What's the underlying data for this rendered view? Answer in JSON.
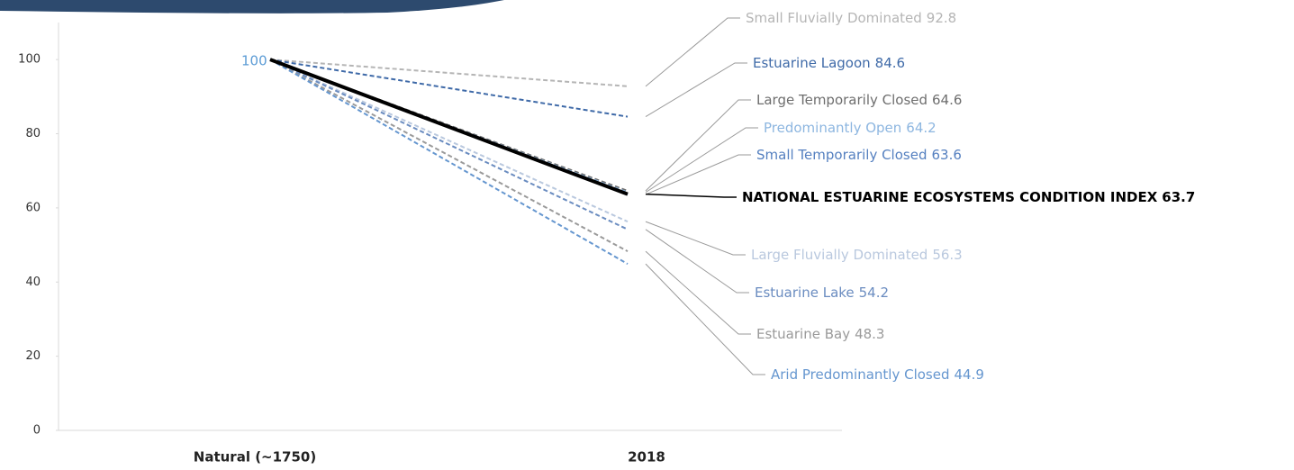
{
  "chart_data": {
    "type": "line",
    "categories": [
      "Natural (~1750)",
      "2018"
    ],
    "ylim": [
      0,
      110
    ],
    "yticks": [
      0,
      20,
      40,
      60,
      80,
      100
    ],
    "start_label_color": "#5b9bd5",
    "series": [
      {
        "name": "Small Fluvially Dominated",
        "color": "#b5b5b5",
        "dashed": true,
        "values": [
          100,
          92.8
        ]
      },
      {
        "name": "Estuarine Lagoon",
        "color": "#3f6aa8",
        "dashed": true,
        "values": [
          100,
          84.6
        ]
      },
      {
        "name": "Large Temporarily Closed",
        "color": "#6e6e6e",
        "dashed": true,
        "values": [
          100,
          64.6
        ]
      },
      {
        "name": "Predominantly Open",
        "color": "#8db6e0",
        "dashed": true,
        "values": [
          100,
          64.2
        ]
      },
      {
        "name": "Small Temporarily Closed",
        "color": "#5580c0",
        "dashed": true,
        "values": [
          100,
          63.6
        ]
      },
      {
        "name": "NATIONAL ESTUARINE ECOSYSTEMS CONDITION INDEX",
        "color": "#000000",
        "dashed": false,
        "values": [
          100,
          63.7
        ]
      },
      {
        "name": "Large Fluvially Dominated",
        "color": "#b9c8de",
        "dashed": true,
        "values": [
          100,
          56.3
        ]
      },
      {
        "name": "Estuarine Lake",
        "color": "#6a8cc0",
        "dashed": true,
        "values": [
          100,
          54.2
        ]
      },
      {
        "name": "Estuarine Bay",
        "color": "#9a9a9a",
        "dashed": true,
        "values": [
          100,
          48.3
        ]
      },
      {
        "name": "Arid Predominantly Closed",
        "color": "#6596cf",
        "dashed": true,
        "values": [
          100,
          44.9
        ]
      }
    ]
  }
}
